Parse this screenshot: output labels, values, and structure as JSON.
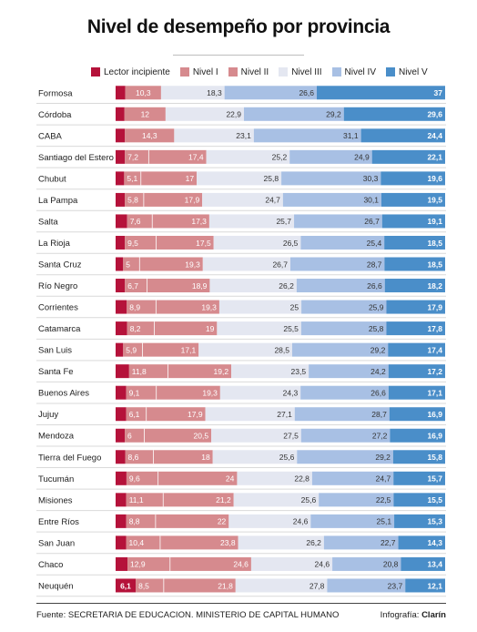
{
  "chart_data": {
    "type": "bar",
    "stacked": true,
    "orientation": "horizontal",
    "title": "Nivel de desempeño por provincia",
    "legend_position": "top",
    "categories": [
      "Formosa",
      "Córdoba",
      "CABA",
      "Santiago del Estero",
      "Chubut",
      "La Pampa",
      "Salta",
      "La Rioja",
      "Santa Cruz",
      "Río Negro",
      "Corrientes",
      "Catamarca",
      "San Luis",
      "Santa Fe",
      "Buenos Aires",
      "Jujuy",
      "Mendoza",
      "Tierra del Fuego",
      "Tucumán",
      "Misiones",
      "Entre Ríos",
      "San Juan",
      "Chaco",
      "Neuquén"
    ],
    "series": [
      {
        "name": "Lector incipiente",
        "color": "#b5123a",
        "values": [
          2.8,
          2.6,
          2.7,
          2.8,
          2.6,
          2.8,
          3.5,
          2.8,
          2.3,
          2.8,
          3.4,
          3.5,
          2.3,
          4.1,
          3.2,
          3.2,
          2.8,
          2.9,
          3.3,
          3.2,
          3.2,
          3.2,
          3.6,
          6.1
        ],
        "labels": [
          "",
          "",
          "",
          "",
          "",
          "",
          "",
          "",
          "",
          "",
          "",
          "",
          "",
          "",
          "",
          "",
          "",
          "",
          "",
          "",
          "",
          "",
          "",
          "6,1"
        ]
      },
      {
        "name": "Nivel I",
        "color": "#d68a8e",
        "values": [
          10.3,
          12,
          14.3,
          7.2,
          5.1,
          5.8,
          7.6,
          9.5,
          5,
          6.7,
          8.9,
          8.2,
          5.9,
          11.8,
          9.1,
          6.1,
          6,
          8.6,
          9.6,
          11.1,
          8.8,
          10.4,
          12.9,
          8.5
        ],
        "labels": [
          "10,3",
          "12",
          "14,3",
          "7,2",
          "5,1",
          "5,8",
          "7,6",
          "9,5",
          "5",
          "6,7",
          "8,9",
          "8,2",
          "5,9",
          "11,8",
          "9,1",
          "6,1",
          "6",
          "8,6",
          "9,6",
          "11,1",
          "8,8",
          "10,4",
          "12,9",
          "8,5"
        ]
      },
      {
        "name": "Nivel II",
        "color": "#d68a8e",
        "values": [
          0,
          0,
          0,
          17.4,
          17,
          17.9,
          17.3,
          17.5,
          19.3,
          18.9,
          19.3,
          19,
          17.1,
          19.2,
          19.3,
          17.9,
          20.5,
          18,
          24,
          21.2,
          22,
          23.8,
          24.6,
          21.8
        ],
        "labels": [
          "",
          "",
          "",
          "17,4",
          "17",
          "17,9",
          "17,3",
          "17,5",
          "19,3",
          "18,9",
          "19,3",
          "19",
          "17,1",
          "19,2",
          "19,3",
          "17,9",
          "20,5",
          "18",
          "24",
          "21,2",
          "22",
          "23,8",
          "24,6",
          "21,8"
        ]
      },
      {
        "name": "Nivel III",
        "color": "#e4e7f1",
        "values": [
          18.3,
          22.9,
          23.1,
          25.2,
          25.8,
          24.7,
          25.7,
          26.5,
          26.7,
          26.2,
          25,
          25.5,
          28.5,
          23.5,
          24.3,
          27.1,
          27.5,
          25.6,
          22.8,
          25.6,
          24.6,
          26.2,
          24.6,
          27.8
        ],
        "labels": [
          "18,3",
          "22,9",
          "23,1",
          "25,2",
          "25,8",
          "24,7",
          "25,7",
          "26,5",
          "26,7",
          "26,2",
          "25",
          "25,5",
          "28,5",
          "23,5",
          "24,3",
          "27,1",
          "27,5",
          "25,6",
          "22,8",
          "25,6",
          "24,6",
          "26,2",
          "24,6",
          "27,8"
        ]
      },
      {
        "name": "Nivel IV",
        "color": "#a8c0e4",
        "values": [
          26.6,
          29.2,
          31.1,
          24.9,
          30.3,
          30.1,
          26.7,
          25.4,
          28.7,
          26.6,
          25.9,
          25.8,
          29.2,
          24.2,
          26.6,
          28.7,
          27.2,
          29.2,
          24.7,
          22.5,
          25.1,
          22.7,
          20.8,
          23.7
        ],
        "labels": [
          "26,6",
          "29,2",
          "31,1",
          "24,9",
          "30,3",
          "30,1",
          "26,7",
          "25,4",
          "28,7",
          "26,6",
          "25,9",
          "25,8",
          "29,2",
          "24,2",
          "26,6",
          "28,7",
          "27,2",
          "29,2",
          "24,7",
          "22,5",
          "25,1",
          "22,7",
          "20,8",
          "23,7"
        ]
      },
      {
        "name": "Nivel V",
        "color": "#4a8ec9",
        "values": [
          37,
          29.6,
          24.4,
          22.1,
          19.6,
          19.5,
          19.1,
          18.5,
          18.5,
          18.2,
          17.9,
          17.8,
          17.4,
          17.2,
          17.1,
          16.9,
          16.9,
          15.8,
          15.7,
          15.5,
          15.3,
          14.3,
          13.4,
          12.1
        ],
        "labels": [
          "37",
          "29,6",
          "24,4",
          "22,1",
          "19,6",
          "19,5",
          "19,1",
          "18,5",
          "18,5",
          "18,2",
          "17,9",
          "17,8",
          "17,4",
          "17,2",
          "17,1",
          "16,9",
          "16,9",
          "15,8",
          "15,7",
          "15,5",
          "15,3",
          "14,3",
          "13,4",
          "12,1"
        ]
      }
    ]
  },
  "footer": {
    "source": "Fuente: SECRETARIA DE EDUCACION. MINISTERIO DE CAPITAL HUMANO",
    "credit_label": "Infografía:",
    "credit_name": "Clarín"
  }
}
